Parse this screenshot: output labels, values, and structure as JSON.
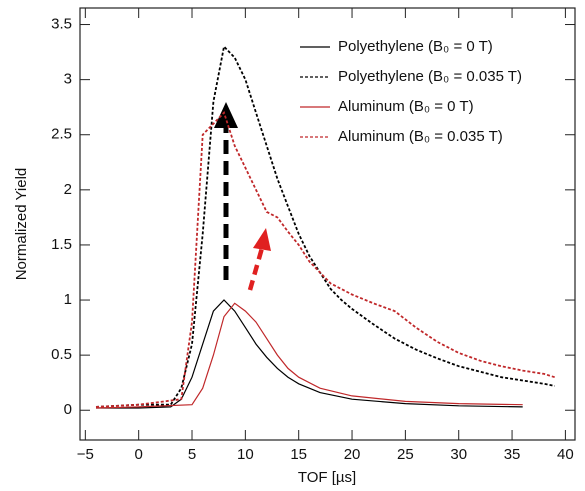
{
  "chart_data": {
    "type": "line",
    "xlabel": "TOF [µs]",
    "ylabel": "Normalized Yield",
    "xlim": [
      -5.5,
      40.9
    ],
    "ylim": [
      -0.27,
      3.65
    ],
    "xticks": [
      {
        "value": -5,
        "label": "−5"
      },
      0,
      5,
      10,
      15,
      20,
      25,
      30,
      35,
      40
    ],
    "yticks": [
      0,
      0.5,
      1,
      1.5,
      2,
      2.5,
      3,
      3.5
    ],
    "legend": "upper right",
    "series": [
      {
        "name": "Polyethylene (B₀ = 0 T)",
        "color": "#000000",
        "dashed": false,
        "x": [
          -4,
          0,
          3,
          4,
          5,
          6,
          7,
          8,
          9,
          10,
          11,
          12,
          13,
          14,
          15,
          17,
          20,
          25,
          30,
          36
        ],
        "values": [
          0.02,
          0.02,
          0.03,
          0.1,
          0.3,
          0.6,
          0.9,
          1.0,
          0.9,
          0.75,
          0.6,
          0.48,
          0.38,
          0.3,
          0.24,
          0.16,
          0.1,
          0.06,
          0.04,
          0.03
        ]
      },
      {
        "name": "Polyethylene (B₀ = 0.035 T)",
        "color": "#000000",
        "dashed": true,
        "x": [
          -4,
          0,
          3,
          4,
          5,
          6,
          7,
          8,
          9,
          10,
          11,
          12,
          13,
          14,
          15,
          16,
          17,
          18,
          19,
          20,
          22,
          24,
          26,
          28,
          30,
          32,
          34,
          36,
          38,
          39
        ],
        "values": [
          0.03,
          0.05,
          0.05,
          0.2,
          0.6,
          1.6,
          2.8,
          3.3,
          3.2,
          3.0,
          2.7,
          2.4,
          2.1,
          1.85,
          1.6,
          1.4,
          1.25,
          1.1,
          1.0,
          0.92,
          0.78,
          0.65,
          0.55,
          0.47,
          0.4,
          0.35,
          0.3,
          0.27,
          0.24,
          0.22
        ]
      },
      {
        "name": "Aluminum (B₀ = 0 T)",
        "color": "#c0282a",
        "dashed": false,
        "x": [
          -4,
          0,
          5,
          6,
          7,
          8,
          9,
          10,
          11,
          12,
          13,
          14,
          15,
          17,
          20,
          25,
          30,
          36
        ],
        "values": [
          0.02,
          0.03,
          0.05,
          0.2,
          0.5,
          0.85,
          0.97,
          0.9,
          0.8,
          0.65,
          0.5,
          0.38,
          0.3,
          0.2,
          0.13,
          0.08,
          0.06,
          0.05
        ]
      },
      {
        "name": "Aluminum (B₀ = 0.035 T)",
        "color": "#c0282a",
        "dashed": true,
        "x": [
          -4,
          0,
          4,
          5,
          6,
          7,
          8,
          9,
          10,
          11,
          12,
          13,
          14,
          15,
          16,
          17,
          18,
          19,
          20,
          22,
          24,
          26,
          28,
          30,
          32,
          34,
          36,
          38,
          39
        ],
        "values": [
          0.03,
          0.05,
          0.1,
          0.8,
          2.5,
          2.6,
          2.7,
          2.4,
          2.2,
          2.0,
          1.8,
          1.75,
          1.62,
          1.5,
          1.35,
          1.25,
          1.15,
          1.1,
          1.05,
          0.97,
          0.9,
          0.75,
          0.62,
          0.52,
          0.45,
          0.4,
          0.36,
          0.33,
          0.3
        ]
      }
    ]
  }
}
